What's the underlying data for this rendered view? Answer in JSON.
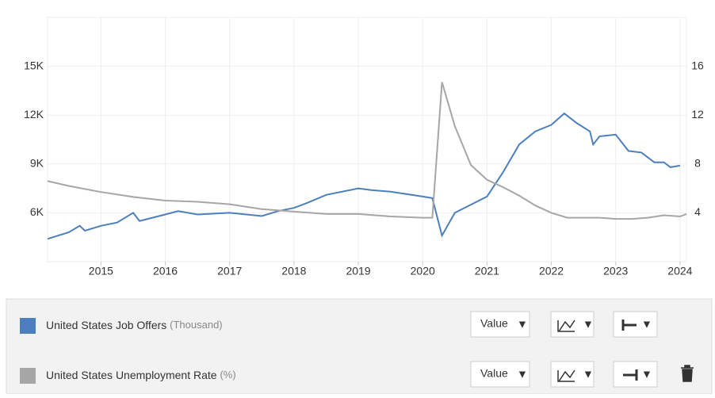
{
  "chart_data": {
    "type": "line",
    "xlim": [
      2014.17,
      2024.1
    ],
    "xticks": [
      2015,
      2016,
      2017,
      2018,
      2019,
      2020,
      2021,
      2022,
      2023,
      2024
    ],
    "ylim": [
      3000,
      18000
    ],
    "yticks": [
      {
        "value": 6000,
        "label": "6K"
      },
      {
        "value": 9000,
        "label": "9K"
      },
      {
        "value": 12000,
        "label": "12K"
      },
      {
        "value": 15000,
        "label": "15K"
      }
    ],
    "y2lim": [
      0,
      20
    ],
    "y2ticks": [
      4,
      8,
      12,
      16
    ],
    "grid": true,
    "series": [
      {
        "name": "United States Job Offers",
        "unit": "(Thousand)",
        "color": "#4d7fbf",
        "x": [
          2014.17,
          2014.5,
          2014.67,
          2014.75,
          2015.0,
          2015.25,
          2015.5,
          2015.6,
          2016.0,
          2016.2,
          2016.5,
          2017.0,
          2017.5,
          2017.75,
          2018.0,
          2018.2,
          2018.5,
          2019.0,
          2019.2,
          2019.5,
          2020.0,
          2020.15,
          2020.3,
          2020.5,
          2020.75,
          2021.0,
          2021.25,
          2021.5,
          2021.75,
          2022.0,
          2022.2,
          2022.4,
          2022.6,
          2022.65,
          2022.75,
          2023.0,
          2023.2,
          2023.4,
          2023.6,
          2023.75,
          2023.85,
          2024.0
        ],
        "values": [
          4400,
          4800,
          5200,
          4900,
          5200,
          5400,
          6000,
          5500,
          5900,
          6100,
          5900,
          6000,
          5800,
          6100,
          6300,
          6600,
          7100,
          7500,
          7400,
          7300,
          7000,
          6900,
          4600,
          6000,
          6500,
          7000,
          8500,
          10200,
          11000,
          11400,
          12100,
          11500,
          11000,
          10200,
          10700,
          10800,
          9800,
          9700,
          9100,
          9100,
          8800,
          8900
        ]
      },
      {
        "name": "United States Unemployment Rate",
        "unit": "(%)",
        "color": "#a6a6a6",
        "axis": "y2",
        "x": [
          2014.17,
          2014.5,
          2015.0,
          2015.5,
          2016.0,
          2016.5,
          2017.0,
          2017.5,
          2018.0,
          2018.5,
          2019.0,
          2019.5,
          2020.0,
          2020.15,
          2020.3,
          2020.5,
          2020.75,
          2021.0,
          2021.25,
          2021.5,
          2021.75,
          2022.0,
          2022.25,
          2022.5,
          2022.75,
          2023.0,
          2023.25,
          2023.5,
          2023.75,
          2024.0,
          2024.1
        ],
        "values": [
          6.6,
          6.2,
          5.7,
          5.3,
          5.0,
          4.9,
          4.7,
          4.3,
          4.1,
          3.9,
          3.9,
          3.7,
          3.6,
          3.6,
          14.7,
          11.1,
          7.9,
          6.7,
          6.1,
          5.4,
          4.6,
          4.0,
          3.6,
          3.6,
          3.6,
          3.5,
          3.5,
          3.6,
          3.8,
          3.7,
          3.9
        ]
      }
    ]
  },
  "controls": {
    "rows": [
      {
        "mode": "Value"
      },
      {
        "mode": "Value"
      }
    ]
  }
}
